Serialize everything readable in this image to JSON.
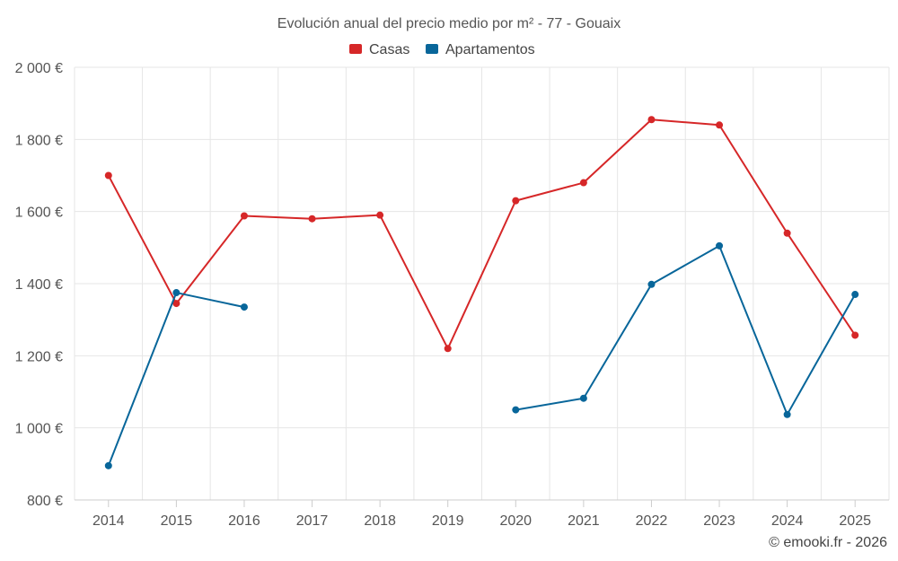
{
  "chart_data": {
    "type": "line",
    "title": "Evolución anual del precio medio por m² - 77 - Gouaix",
    "categories": [
      "2014",
      "2015",
      "2016",
      "2017",
      "2018",
      "2019",
      "2020",
      "2021",
      "2022",
      "2023",
      "2024",
      "2025"
    ],
    "ylim": [
      800,
      2000
    ],
    "yticks": [
      800,
      1000,
      1200,
      1400,
      1600,
      1800,
      2000
    ],
    "ytick_labels": [
      "800 €",
      "1 000 €",
      "1 200 €",
      "1 400 €",
      "1 600 €",
      "1 800 €",
      "2 000 €"
    ],
    "grid": true,
    "legend_position": "top-center",
    "series": [
      {
        "name": "Casas",
        "color": "#d62728",
        "values": [
          1700,
          1345,
          1588,
          1580,
          1590,
          1220,
          1630,
          1680,
          1855,
          1840,
          1540,
          1257
        ]
      },
      {
        "name": "Apartamentos",
        "color": "#08669a",
        "values": [
          895,
          1375,
          1335,
          null,
          null,
          null,
          1050,
          1082,
          1398,
          1505,
          1037,
          1370
        ]
      }
    ]
  },
  "credit": "© emooki.fr - 2026"
}
